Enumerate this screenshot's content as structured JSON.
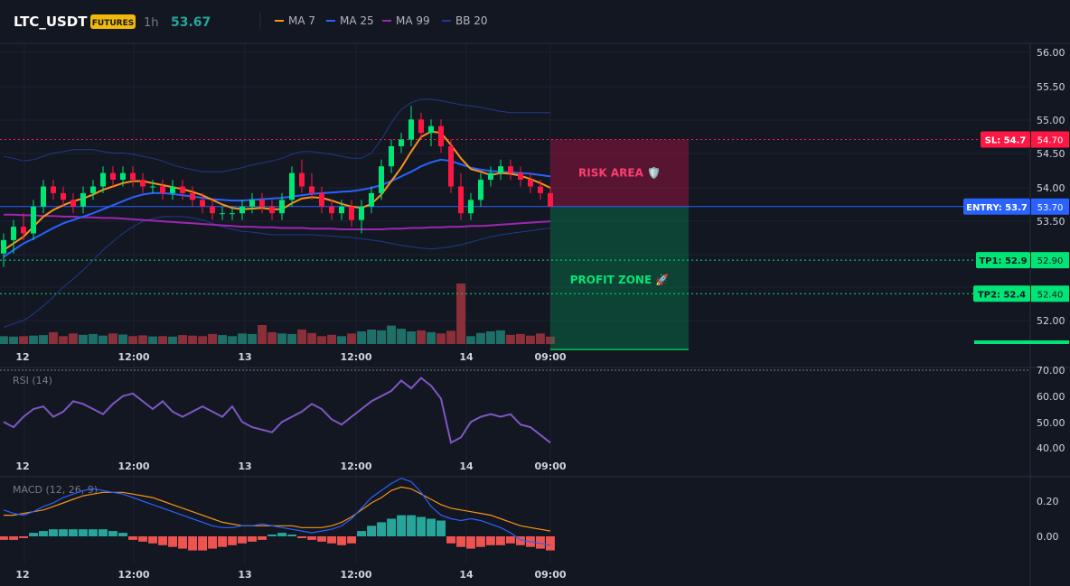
{
  "header": {
    "symbol": "LTC_USDT",
    "badge": "FUTURES",
    "interval": "1h",
    "price": "53.67",
    "indicators": [
      {
        "label": "MA 7",
        "color": "#f7931a"
      },
      {
        "label": "MA 25",
        "color": "#2962ff"
      },
      {
        "label": "MA 99",
        "color": "#9c27b0"
      },
      {
        "label": "BB 20",
        "color": "#1e3a8a"
      }
    ]
  },
  "colors": {
    "up": "#26a69a",
    "down": "#ef5350",
    "candle_up": "#00e676",
    "candle_down": "#ff1744",
    "ma7": "#f7931a",
    "ma25": "#2962ff",
    "ma99": "#9c27b0",
    "bb": "#1e3a8a",
    "rsi": "#7e57c2",
    "macd": "#2962ff",
    "signal": "#f7931a",
    "entry": "#2962ff",
    "sl": "#ff1744",
    "tp": "#00e676"
  },
  "levels": {
    "sl": {
      "label": "SL: 54.7",
      "price": 54.7,
      "value": "54.70"
    },
    "entry": {
      "label": "ENTRY: 53.7",
      "price": 53.7,
      "value": "53.70"
    },
    "tp1": {
      "label": "TP1: 52.9",
      "price": 52.9,
      "value": "52.90"
    },
    "tp2": {
      "label": "TP2: 52.4",
      "price": 52.4,
      "value": "52.40"
    }
  },
  "zones": {
    "risk": "RISK AREA 🛡️",
    "profit": "PROFIT ZONE 🚀"
  },
  "time_axis": [
    "12",
    "12:00",
    "13",
    "12:00",
    "14",
    "09:00"
  ],
  "rsi_panel": {
    "title": "RSI (14)",
    "ticks": [
      "70.00",
      "60.00",
      "50.00",
      "40.00"
    ]
  },
  "macd_panel": {
    "title": "MACD (12, 26, 9)",
    "ticks": [
      "0.20",
      "0.00"
    ]
  },
  "chart_data": {
    "type": "candlestick",
    "price_axis": {
      "ticks": [
        "56.00",
        "55.50",
        "55.00",
        "54.50",
        "54.00",
        "53.50",
        "52.00"
      ],
      "range": [
        51.7,
        56.2
      ]
    },
    "candles": [
      [
        53.0,
        53.3,
        52.8,
        53.2
      ],
      [
        53.2,
        53.5,
        53.0,
        53.4
      ],
      [
        53.4,
        53.6,
        53.2,
        53.3
      ],
      [
        53.3,
        53.8,
        53.2,
        53.7
      ],
      [
        53.7,
        54.1,
        53.6,
        54.0
      ],
      [
        54.0,
        54.1,
        53.8,
        53.9
      ],
      [
        53.9,
        54.0,
        53.7,
        53.8
      ],
      [
        53.8,
        53.9,
        53.6,
        53.7
      ],
      [
        53.7,
        54.0,
        53.6,
        53.9
      ],
      [
        53.9,
        54.1,
        53.8,
        54.0
      ],
      [
        54.0,
        54.3,
        53.9,
        54.2
      ],
      [
        54.2,
        54.3,
        54.0,
        54.1
      ],
      [
        54.1,
        54.3,
        54.0,
        54.2
      ],
      [
        54.2,
        54.3,
        54.0,
        54.1
      ],
      [
        54.1,
        54.2,
        53.9,
        54.0
      ],
      [
        54.0,
        54.1,
        53.9,
        54.0
      ],
      [
        54.0,
        54.1,
        53.8,
        53.9
      ],
      [
        53.9,
        54.1,
        53.8,
        54.0
      ],
      [
        54.0,
        54.1,
        53.8,
        53.9
      ],
      [
        53.9,
        54.0,
        53.7,
        53.8
      ],
      [
        53.8,
        53.9,
        53.6,
        53.7
      ],
      [
        53.7,
        53.8,
        53.5,
        53.6
      ],
      [
        53.6,
        53.7,
        53.5,
        53.6
      ],
      [
        53.6,
        53.7,
        53.5,
        53.6
      ],
      [
        53.6,
        53.8,
        53.5,
        53.7
      ],
      [
        53.7,
        53.9,
        53.6,
        53.8
      ],
      [
        53.8,
        53.9,
        53.6,
        53.7
      ],
      [
        53.7,
        53.8,
        53.5,
        53.6
      ],
      [
        53.6,
        53.9,
        53.5,
        53.8
      ],
      [
        53.8,
        54.3,
        53.7,
        54.2
      ],
      [
        54.2,
        54.4,
        53.9,
        54.0
      ],
      [
        54.0,
        54.2,
        53.8,
        53.9
      ],
      [
        53.9,
        54.0,
        53.6,
        53.7
      ],
      [
        53.7,
        53.8,
        53.5,
        53.6
      ],
      [
        53.6,
        53.8,
        53.5,
        53.7
      ],
      [
        53.7,
        53.8,
        53.4,
        53.5
      ],
      [
        53.5,
        53.8,
        53.3,
        53.7
      ],
      [
        53.7,
        54.0,
        53.6,
        53.9
      ],
      [
        53.9,
        54.4,
        53.8,
        54.3
      ],
      [
        54.3,
        54.7,
        54.2,
        54.6
      ],
      [
        54.6,
        54.8,
        54.5,
        54.7
      ],
      [
        54.7,
        55.2,
        54.6,
        55.0
      ],
      [
        55.0,
        55.1,
        54.7,
        54.8
      ],
      [
        54.8,
        55.0,
        54.6,
        54.9
      ],
      [
        54.9,
        55.0,
        54.5,
        54.6
      ],
      [
        54.6,
        54.7,
        53.9,
        54.0
      ],
      [
        54.0,
        54.2,
        53.5,
        53.6
      ],
      [
        53.6,
        53.9,
        53.5,
        53.8
      ],
      [
        53.8,
        54.2,
        53.7,
        54.1
      ],
      [
        54.1,
        54.3,
        54.0,
        54.2
      ],
      [
        54.2,
        54.4,
        54.1,
        54.3
      ],
      [
        54.3,
        54.4,
        54.1,
        54.2
      ],
      [
        54.2,
        54.3,
        54.0,
        54.1
      ],
      [
        54.1,
        54.2,
        53.9,
        54.0
      ],
      [
        54.0,
        54.1,
        53.8,
        53.9
      ],
      [
        53.9,
        54.0,
        53.7,
        53.7
      ]
    ],
    "volume": [
      30,
      28,
      30,
      32,
      34,
      45,
      30,
      40,
      35,
      38,
      32,
      40,
      36,
      30,
      33,
      29,
      30,
      28,
      34,
      32,
      30,
      38,
      34,
      30,
      40,
      38,
      72,
      45,
      40,
      38,
      55,
      42,
      30,
      35,
      30,
      40,
      48,
      55,
      52,
      70,
      58,
      48,
      52,
      45,
      40,
      50,
      230,
      30,
      42,
      48,
      52,
      35,
      38,
      32,
      40,
      28
    ],
    "ma7": [
      53.05,
      53.15,
      53.25,
      53.4,
      53.55,
      53.65,
      53.72,
      53.78,
      53.82,
      53.88,
      53.95,
      54.0,
      54.05,
      54.08,
      54.08,
      54.05,
      54.02,
      53.99,
      53.96,
      53.92,
      53.87,
      53.8,
      53.73,
      53.68,
      53.66,
      53.67,
      53.68,
      53.66,
      53.66,
      53.75,
      53.82,
      53.84,
      53.83,
      53.79,
      53.74,
      53.7,
      53.68,
      53.74,
      53.88,
      54.08,
      54.28,
      54.52,
      54.74,
      54.82,
      54.8,
      54.62,
      54.42,
      54.26,
      54.22,
      54.17,
      54.2,
      54.19,
      54.16,
      54.11,
      54.05,
      53.98
    ],
    "ma25": [
      52.95,
      53.05,
      53.15,
      53.22,
      53.3,
      53.38,
      53.45,
      53.5,
      53.55,
      53.6,
      53.66,
      53.72,
      53.78,
      53.84,
      53.88,
      53.9,
      53.9,
      53.89,
      53.87,
      53.85,
      53.83,
      53.81,
      53.8,
      53.79,
      53.79,
      53.8,
      53.81,
      53.82,
      53.83,
      53.85,
      53.87,
      53.89,
      53.9,
      53.91,
      53.92,
      53.93,
      53.95,
      53.98,
      54.02,
      54.08,
      54.15,
      54.22,
      54.3,
      54.36,
      54.4,
      54.38,
      54.33,
      54.28,
      54.25,
      54.23,
      54.22,
      54.21,
      54.2,
      54.19,
      54.17,
      54.15
    ],
    "ma99": [
      53.58,
      53.58,
      53.57,
      53.57,
      53.56,
      53.56,
      53.55,
      53.55,
      53.54,
      53.54,
      53.53,
      53.53,
      53.52,
      53.51,
      53.5,
      53.49,
      53.48,
      53.47,
      53.46,
      53.45,
      53.44,
      53.43,
      53.42,
      53.41,
      53.4,
      53.4,
      53.39,
      53.39,
      53.38,
      53.38,
      53.38,
      53.37,
      53.37,
      53.37,
      53.36,
      53.36,
      53.36,
      53.36,
      53.36,
      53.37,
      53.37,
      53.38,
      53.38,
      53.39,
      53.39,
      53.4,
      53.4,
      53.41,
      53.41,
      53.42,
      53.43,
      53.44,
      53.45,
      53.46,
      53.47,
      53.48
    ],
    "bb_upper": [
      54.45,
      54.42,
      54.38,
      54.4,
      54.45,
      54.5,
      54.52,
      54.55,
      54.55,
      54.55,
      54.52,
      54.5,
      54.5,
      54.48,
      54.45,
      54.42,
      54.38,
      54.32,
      54.28,
      54.25,
      54.22,
      54.22,
      54.22,
      54.25,
      54.28,
      54.32,
      54.35,
      54.38,
      54.42,
      54.48,
      54.52,
      54.52,
      54.5,
      54.48,
      54.45,
      54.42,
      54.42,
      54.5,
      54.7,
      54.95,
      55.15,
      55.25,
      55.3,
      55.3,
      55.28,
      55.25,
      55.22,
      55.2,
      55.18,
      55.15,
      55.12,
      55.1,
      55.1,
      55.1,
      55.1,
      55.1
    ],
    "bb_lower": [
      51.9,
      51.95,
      52.0,
      52.1,
      52.22,
      52.35,
      52.5,
      52.62,
      52.75,
      52.9,
      53.05,
      53.18,
      53.3,
      53.4,
      53.48,
      53.52,
      53.55,
      53.55,
      53.55,
      53.53,
      53.5,
      53.45,
      53.4,
      53.36,
      53.33,
      53.32,
      53.3,
      53.28,
      53.28,
      53.28,
      53.28,
      53.28,
      53.27,
      53.26,
      53.25,
      53.24,
      53.22,
      53.2,
      53.18,
      53.15,
      53.12,
      53.1,
      53.08,
      53.07,
      53.08,
      53.1,
      53.13,
      53.17,
      53.21,
      53.25,
      53.28,
      53.3,
      53.32,
      53.34,
      53.36,
      53.38
    ],
    "rsi": [
      50,
      48,
      52,
      55,
      56,
      52,
      54,
      58,
      57,
      55,
      53,
      57,
      60,
      61,
      58,
      55,
      58,
      54,
      52,
      54,
      56,
      54,
      52,
      56,
      50,
      48,
      47,
      46,
      50,
      52,
      54,
      57,
      55,
      51,
      49,
      52,
      55,
      58,
      60,
      62,
      66,
      63,
      67,
      64,
      59,
      42,
      44,
      50,
      52,
      53,
      52,
      53,
      49,
      48,
      45,
      42
    ],
    "macd": [
      0.15,
      0.13,
      0.12,
      0.14,
      0.17,
      0.19,
      0.22,
      0.24,
      0.26,
      0.27,
      0.26,
      0.25,
      0.24,
      0.22,
      0.2,
      0.18,
      0.16,
      0.14,
      0.12,
      0.1,
      0.08,
      0.06,
      0.05,
      0.05,
      0.06,
      0.06,
      0.07,
      0.06,
      0.05,
      0.04,
      0.03,
      0.02,
      0.03,
      0.04,
      0.06,
      0.1,
      0.16,
      0.22,
      0.26,
      0.3,
      0.33,
      0.31,
      0.25,
      0.17,
      0.12,
      0.1,
      0.09,
      0.1,
      0.09,
      0.07,
      0.05,
      0.02,
      -0.02,
      -0.03,
      -0.04,
      -0.05
    ],
    "signal": [
      0.12,
      0.12,
      0.13,
      0.14,
      0.15,
      0.17,
      0.19,
      0.21,
      0.23,
      0.24,
      0.25,
      0.25,
      0.25,
      0.24,
      0.23,
      0.22,
      0.2,
      0.18,
      0.16,
      0.14,
      0.12,
      0.1,
      0.08,
      0.07,
      0.06,
      0.06,
      0.06,
      0.06,
      0.06,
      0.06,
      0.05,
      0.05,
      0.05,
      0.06,
      0.08,
      0.11,
      0.15,
      0.19,
      0.22,
      0.26,
      0.28,
      0.27,
      0.24,
      0.21,
      0.18,
      0.16,
      0.15,
      0.14,
      0.13,
      0.12,
      0.1,
      0.08,
      0.06,
      0.05,
      0.04,
      0.03
    ],
    "histogram": [
      -0.02,
      -0.02,
      -0.01,
      0.02,
      0.03,
      0.04,
      0.04,
      0.04,
      0.04,
      0.04,
      0.04,
      0.03,
      0.02,
      -0.02,
      -0.03,
      -0.04,
      -0.05,
      -0.06,
      -0.07,
      -0.08,
      -0.08,
      -0.07,
      -0.06,
      -0.05,
      -0.04,
      -0.03,
      -0.02,
      0.01,
      0.02,
      0.01,
      -0.01,
      -0.02,
      -0.03,
      -0.04,
      -0.05,
      -0.04,
      0.03,
      0.06,
      0.08,
      0.1,
      0.12,
      0.12,
      0.11,
      0.1,
      0.09,
      -0.04,
      -0.06,
      -0.07,
      -0.06,
      -0.05,
      -0.05,
      -0.04,
      -0.05,
      -0.06,
      -0.07,
      -0.08
    ]
  }
}
